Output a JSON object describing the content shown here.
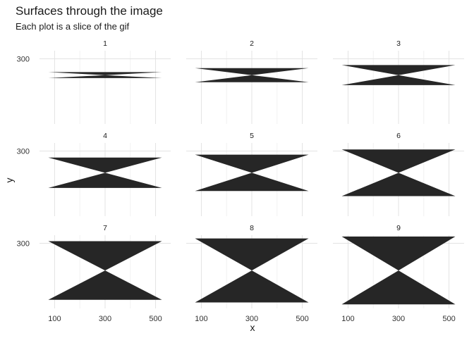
{
  "chart_data": {
    "type": "area",
    "title": "Surfaces through the image",
    "subtitle": "Each plot is a slice of the gif",
    "xlabel": "x",
    "ylabel": "y",
    "facet_labels": [
      "1",
      "2",
      "3",
      "4",
      "5",
      "6",
      "7",
      "8",
      "9"
    ],
    "x_ticks": [
      100,
      300,
      500
    ],
    "y_ticks": [
      300
    ],
    "xlim": [
      40,
      560
    ],
    "ylim": [
      60,
      330
    ],
    "grid": true,
    "legend": "none",
    "fill_color": "#262626",
    "panels": [
      {
        "facet": "1",
        "x": [
          75,
          525
        ],
        "center": [
          300,
          240
        ],
        "top": 251,
        "bottom": 229
      },
      {
        "facet": "2",
        "x": [
          75,
          525
        ],
        "center": [
          300,
          240
        ],
        "top": 266,
        "bottom": 214
      },
      {
        "facet": "3",
        "x": [
          75,
          525
        ],
        "center": [
          300,
          240
        ],
        "top": 277,
        "bottom": 203
      },
      {
        "facet": "4",
        "x": [
          75,
          525
        ],
        "center": [
          300,
          220
        ],
        "top": 276,
        "bottom": 164
      },
      {
        "facet": "5",
        "x": [
          75,
          525
        ],
        "center": [
          300,
          220
        ],
        "top": 287,
        "bottom": 153
      },
      {
        "facet": "6",
        "x": [
          75,
          525
        ],
        "center": [
          300,
          220
        ],
        "top": 306,
        "bottom": 134
      },
      {
        "facet": "7",
        "x": [
          75,
          525
        ],
        "center": [
          300,
          200
        ],
        "top": 308,
        "bottom": 92
      },
      {
        "facet": "8",
        "x": [
          75,
          525
        ],
        "center": [
          300,
          200
        ],
        "top": 318,
        "bottom": 82
      },
      {
        "facet": "9",
        "x": [
          75,
          525
        ],
        "center": [
          300,
          200
        ],
        "top": 325,
        "bottom": 75
      }
    ]
  }
}
